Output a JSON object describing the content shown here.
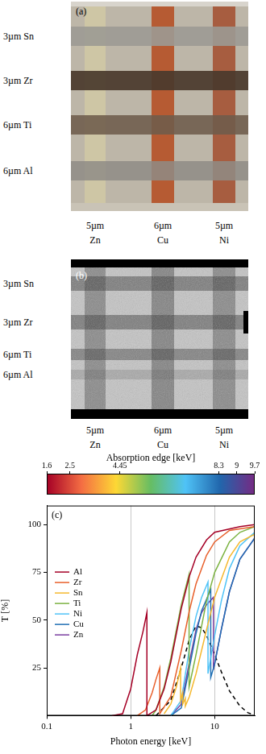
{
  "panels": [
    {
      "label": "(a)",
      "rows": [
        "3µm Sn",
        "3µm Zr",
        "6µm Ti",
        "6µm Al"
      ],
      "columns": [
        {
          "thickness": "5µm",
          "element": "Zn"
        },
        {
          "thickness": "6µm",
          "element": "Cu"
        },
        {
          "thickness": "5µm",
          "element": "Ni"
        }
      ]
    },
    {
      "label": "(b)",
      "rows": [
        "3µm Sn",
        "3µm Zr",
        "6µm Ti",
        "6µm Al"
      ],
      "columns": [
        {
          "thickness": "5µm",
          "element": "Zn"
        },
        {
          "thickness": "6µm",
          "element": "Cu"
        },
        {
          "thickness": "5µm",
          "element": "Ni"
        }
      ]
    }
  ],
  "chart_data": {
    "label": "(c)",
    "type": "line",
    "log": "x",
    "x_label": "Photon energy [keV]",
    "y_label": "T [%]",
    "xlim": [
      0.1,
      30
    ],
    "xticks": [
      0.1,
      1,
      10
    ],
    "ylim": [
      0,
      110
    ],
    "yticks": [
      25,
      50,
      75,
      100
    ],
    "grid": "x",
    "legend": "left",
    "colorbar": {
      "title": "Absorption edge [keV]",
      "range": [
        1.6,
        9.7
      ],
      "ticks": [
        1.6,
        2.5,
        4.45,
        8.3,
        9,
        9.7
      ]
    },
    "series": [
      {
        "name": "Al",
        "color": "#a50026",
        "x": [
          0.6,
          0.8,
          1.0,
          1.2,
          1.4,
          1.56,
          1.56,
          2,
          2.5,
          3,
          4,
          5,
          6,
          8,
          10,
          20,
          30
        ],
        "values": [
          0,
          1,
          14,
          32,
          44,
          54,
          0,
          3,
          14,
          28,
          56,
          73,
          83,
          92,
          96,
          99,
          100
        ]
      },
      {
        "name": "Zr",
        "color": "#e8602c",
        "x": [
          1.2,
          1.5,
          1.8,
          2.0,
          2.22,
          2.22,
          3,
          4,
          5,
          6,
          8,
          10,
          15,
          30
        ],
        "values": [
          0,
          3,
          12,
          19,
          25,
          1,
          10,
          34,
          55,
          69,
          84,
          91,
          97,
          99
        ]
      },
      {
        "name": "Sn",
        "color": "#f5b82e",
        "x": [
          2.5,
          3,
          3.5,
          3.93,
          3.93,
          4.16,
          4.16,
          4.47,
          4.47,
          5,
          6,
          8,
          10,
          15,
          20,
          30
        ],
        "values": [
          1,
          6,
          15,
          25,
          8,
          12,
          6,
          9,
          5,
          10,
          22,
          45,
          62,
          83,
          91,
          95
        ]
      },
      {
        "name": "Ti",
        "color": "#7cb342",
        "x": [
          1.8,
          2,
          2.5,
          3,
          4,
          4.96,
          4.96,
          6,
          7,
          8,
          10,
          15,
          20,
          30
        ],
        "values": [
          0,
          3,
          15,
          30,
          58,
          74,
          15,
          32,
          47,
          60,
          75,
          91,
          96,
          99
        ]
      },
      {
        "name": "Ni",
        "color": "#4fc3f7",
        "x": [
          3,
          4,
          5,
          6,
          7,
          8.33,
          8.33,
          10,
          12,
          15,
          20,
          30
        ],
        "values": [
          0,
          8,
          35,
          52,
          62,
          70,
          22,
          42,
          60,
          77,
          89,
          96
        ]
      },
      {
        "name": "Cu",
        "color": "#1f6fb4",
        "x": [
          3,
          4,
          5,
          6,
          7,
          8.98,
          8.98,
          10,
          12,
          15,
          20,
          30
        ],
        "values": [
          0,
          4,
          25,
          43,
          55,
          66,
          20,
          27,
          45,
          65,
          82,
          93
        ]
      },
      {
        "name": "Zn",
        "color": "#7b3fa0",
        "x": [
          3,
          4,
          5,
          6,
          7,
          8,
          9.66,
          9.66,
          12,
          15,
          20,
          30
        ],
        "values": [
          0,
          6,
          28,
          45,
          54,
          58,
          62,
          24,
          45,
          65,
          82,
          93
        ]
      },
      {
        "color": "#000000",
        "line_style": "dashed",
        "x": [
          2,
          3,
          4,
          5,
          6,
          7,
          8,
          10,
          12,
          15,
          20,
          25,
          30
        ],
        "values": [
          0,
          8,
          25,
          40,
          47,
          46,
          42,
          32,
          23,
          13,
          5,
          1.5,
          0.3
        ]
      }
    ]
  }
}
